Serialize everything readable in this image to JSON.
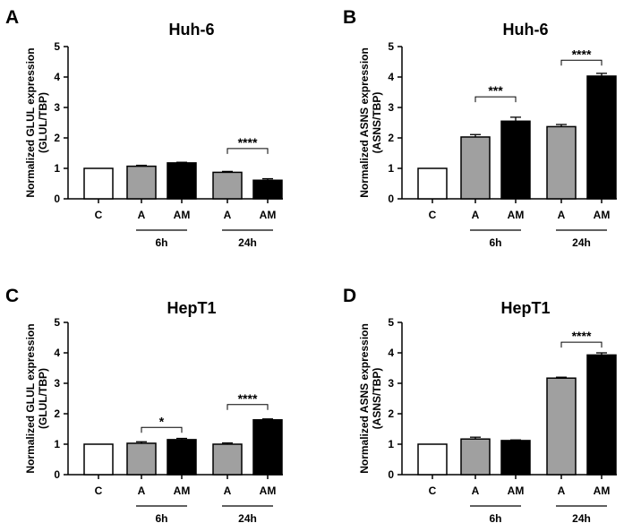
{
  "chart_data": [
    {
      "type": "bar",
      "panel_letter": "A",
      "title": "Huh-6",
      "ylabel_line1": "Normalized GLUL expression",
      "ylabel_line2": "(GLUL/TBP)",
      "ylim": [
        0,
        5
      ],
      "yticks": [
        "0",
        "1",
        "2",
        "3",
        "4",
        "5"
      ],
      "categories": [
        "C",
        "A",
        "AM",
        "A",
        "AM"
      ],
      "values": [
        1.0,
        1.07,
        1.18,
        0.87,
        0.61
      ],
      "errors": [
        0.0,
        0.03,
        0.02,
        0.03,
        0.05
      ],
      "bar_colors": [
        "#ffffff",
        "#a0a0a0",
        "#000000",
        "#a0a0a0",
        "#000000"
      ],
      "groups": [
        {
          "label": "6h",
          "from": 1,
          "to": 2
        },
        {
          "label": "24h",
          "from": 3,
          "to": 4
        }
      ],
      "significance": [
        {
          "from": 3,
          "to": 4,
          "label": "****",
          "level": 1.65
        }
      ]
    },
    {
      "type": "bar",
      "panel_letter": "B",
      "title": "Huh-6",
      "ylabel_line1": "Normalized ASNS expression",
      "ylabel_line2": "(ASNS/TBP)",
      "ylim": [
        0,
        5
      ],
      "yticks": [
        "0",
        "1",
        "2",
        "3",
        "4",
        "5"
      ],
      "categories": [
        "C",
        "A",
        "AM",
        "A",
        "AM"
      ],
      "values": [
        1.0,
        2.03,
        2.55,
        2.37,
        4.03
      ],
      "errors": [
        0.0,
        0.08,
        0.13,
        0.07,
        0.09
      ],
      "bar_colors": [
        "#ffffff",
        "#a0a0a0",
        "#000000",
        "#a0a0a0",
        "#000000"
      ],
      "groups": [
        {
          "label": "6h",
          "from": 1,
          "to": 2
        },
        {
          "label": "24h",
          "from": 3,
          "to": 4
        }
      ],
      "significance": [
        {
          "from": 1,
          "to": 2,
          "label": "***",
          "level": 3.35
        },
        {
          "from": 3,
          "to": 4,
          "label": "****",
          "level": 4.55
        }
      ]
    },
    {
      "type": "bar",
      "panel_letter": "C",
      "title": "HepT1",
      "ylabel_line1": "Normalized GLUL expression",
      "ylabel_line2": "(GLUL/TBP)",
      "ylim": [
        0,
        5
      ],
      "yticks": [
        "0",
        "1",
        "2",
        "3",
        "4",
        "5"
      ],
      "categories": [
        "C",
        "A",
        "AM",
        "A",
        "AM"
      ],
      "values": [
        1.0,
        1.03,
        1.15,
        1.0,
        1.8
      ],
      "errors": [
        0.0,
        0.05,
        0.04,
        0.04,
        0.03
      ],
      "bar_colors": [
        "#ffffff",
        "#a0a0a0",
        "#000000",
        "#a0a0a0",
        "#000000"
      ],
      "groups": [
        {
          "label": "6h",
          "from": 1,
          "to": 2
        },
        {
          "label": "24h",
          "from": 3,
          "to": 4
        }
      ],
      "significance": [
        {
          "from": 1,
          "to": 2,
          "label": "*",
          "level": 1.55
        },
        {
          "from": 3,
          "to": 4,
          "label": "****",
          "level": 2.3
        }
      ]
    },
    {
      "type": "bar",
      "panel_letter": "D",
      "title": "HepT1",
      "ylabel_line1": "Normalized ASNS expression",
      "ylabel_line2": "(ASNS/TBP)",
      "ylim": [
        0,
        5
      ],
      "yticks": [
        "0",
        "1",
        "2",
        "3",
        "4",
        "5"
      ],
      "categories": [
        "C",
        "A",
        "AM",
        "A",
        "AM"
      ],
      "values": [
        1.0,
        1.17,
        1.12,
        3.17,
        3.93
      ],
      "errors": [
        0.0,
        0.06,
        0.02,
        0.03,
        0.07
      ],
      "bar_colors": [
        "#ffffff",
        "#a0a0a0",
        "#000000",
        "#a0a0a0",
        "#000000"
      ],
      "groups": [
        {
          "label": "6h",
          "from": 1,
          "to": 2
        },
        {
          "label": "24h",
          "from": 3,
          "to": 4
        }
      ],
      "significance": [
        {
          "from": 3,
          "to": 4,
          "label": "****",
          "level": 4.35
        }
      ]
    }
  ]
}
